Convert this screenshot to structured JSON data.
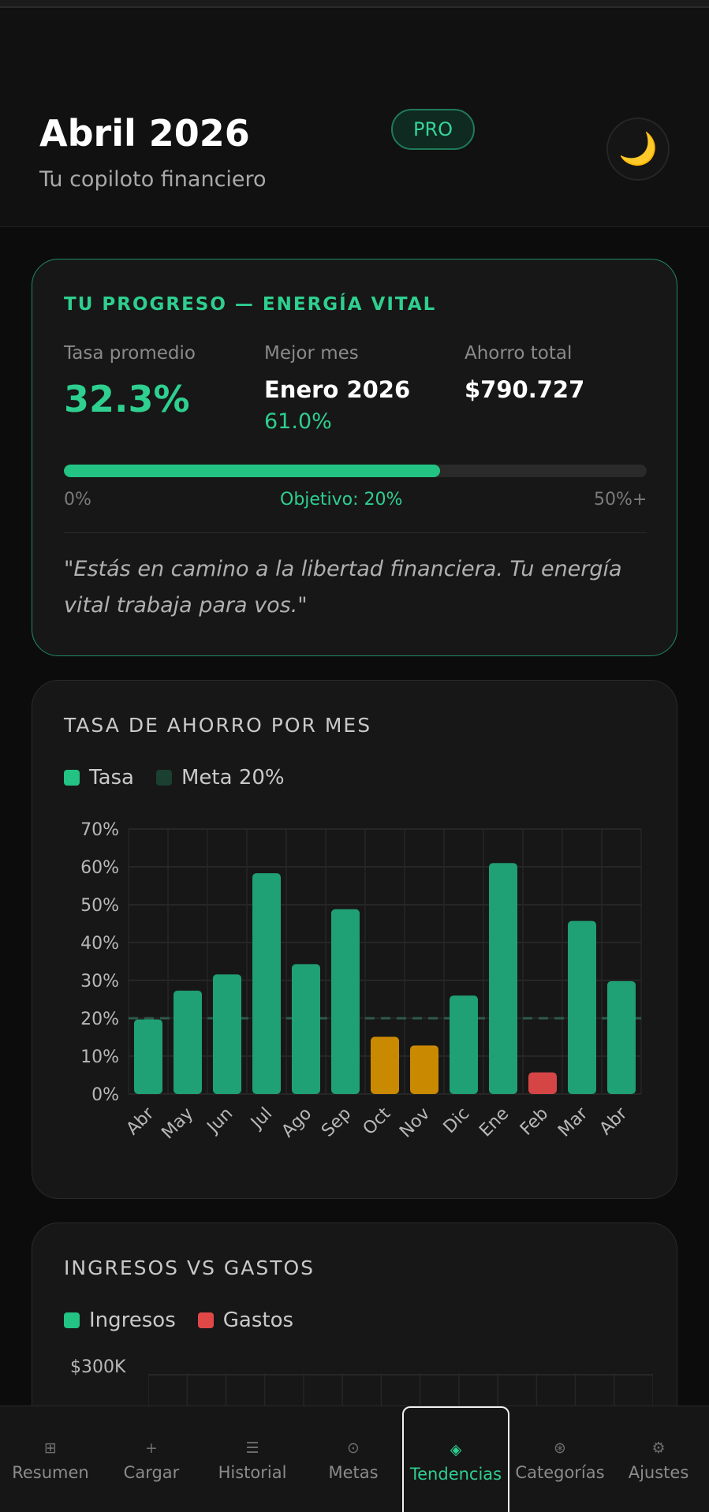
{
  "header": {
    "title": "Abril 2026",
    "subtitle": "Tu copiloto financiero",
    "badge": "PRO",
    "theme_icon": "moon-icon",
    "theme_glyph": "🌙"
  },
  "progress_card": {
    "title": "TU PROGRESO — ENERGÍA VITAL",
    "avg_rate_label": "Tasa promedio",
    "avg_rate_value": "32.3%",
    "best_month_label": "Mejor mes",
    "best_month_value": "Enero 2026",
    "best_month_rate": "61.0%",
    "total_savings_label": "Ahorro total",
    "total_savings_value": "$790.727",
    "progress_fraction": 0.646,
    "scale_min": "0%",
    "scale_goal": "Objetivo: 20%",
    "scale_max": "50%+",
    "quote": "\"Estás en camino a la libertad financiera. Tu energía vital trabaja para vos.\""
  },
  "rate_card": {
    "title": "TASA DE AHORRO POR MES",
    "legend": [
      {
        "label": "Tasa",
        "color": "#22c383"
      },
      {
        "label": "Meta 20%",
        "color": "#1b3f30"
      }
    ]
  },
  "chart_data": {
    "type": "bar",
    "categories": [
      "Abr",
      "May",
      "Jun",
      "Jul",
      "Ago",
      "Sep",
      "Oct",
      "Nov",
      "Dic",
      "Ene",
      "Feb",
      "Mar",
      "Abr"
    ],
    "values": [
      19.7,
      27.3,
      31.6,
      58.3,
      34.3,
      48.8,
      15.1,
      12.8,
      26.0,
      61.0,
      5.7,
      45.7,
      29.8
    ],
    "colors": [
      "#1fa075",
      "#1fa075",
      "#1fa075",
      "#1fa075",
      "#1fa075",
      "#1fa075",
      "#c98900",
      "#c98900",
      "#1fa075",
      "#1fa075",
      "#d64545",
      "#1fa075",
      "#1fa075"
    ],
    "y_ticks": [
      "0%",
      "10%",
      "20%",
      "30%",
      "40%",
      "50%",
      "60%",
      "70%"
    ],
    "ylim": [
      0,
      70
    ],
    "goal_line": 20,
    "grid": true
  },
  "income_card": {
    "title": "INGRESOS VS GASTOS",
    "legend": [
      {
        "label": "Ingresos",
        "color": "#22c383"
      },
      {
        "label": "Gastos",
        "color": "#e04848"
      }
    ],
    "y_top_label": "$300K"
  },
  "nav": [
    {
      "label": "Resumen",
      "glyph": "⊞",
      "icon": "grid-icon"
    },
    {
      "label": "Cargar",
      "glyph": "+",
      "icon": "plus-icon"
    },
    {
      "label": "Historial",
      "glyph": "☰",
      "icon": "list-icon"
    },
    {
      "label": "Metas",
      "glyph": "⊙",
      "icon": "target-icon"
    },
    {
      "label": "Tendencias",
      "glyph": "◈",
      "icon": "trend-icon"
    },
    {
      "label": "Categorías",
      "glyph": "⊛",
      "icon": "categories-icon"
    },
    {
      "label": "Ajustes",
      "glyph": "⚙",
      "icon": "gear-icon"
    }
  ]
}
